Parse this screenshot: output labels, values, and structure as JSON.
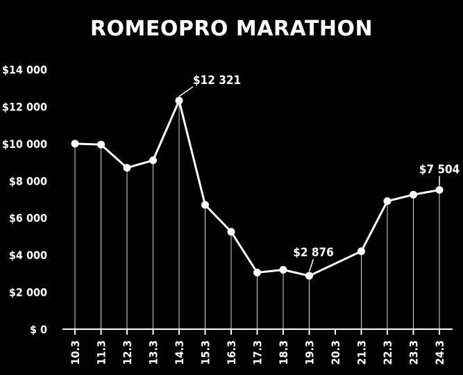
{
  "chart_data": {
    "type": "line",
    "title": "ROMEOPRO MARATHON",
    "xlabel": "",
    "ylabel": "",
    "categories": [
      "10.3",
      "11.3",
      "12.3",
      "13.3",
      "14.3",
      "15.3",
      "16.3",
      "17.3",
      "18.3",
      "19.3",
      "20.3",
      "21.3",
      "22.3",
      "23.3",
      "24.3"
    ],
    "series": [
      {
        "values": [
          10000,
          9950,
          8700,
          9100,
          12321,
          6700,
          5250,
          3050,
          3200,
          2876,
          null,
          4200,
          6900,
          7250,
          7504
        ]
      }
    ],
    "yticks": [
      "$ 0",
      "$2 000",
      "$4 000",
      "$6 000",
      "$8 000",
      "$10 000",
      "$12 000",
      "$14 000"
    ],
    "ylim": [
      0,
      14000
    ],
    "grid": false,
    "annotations": [
      {
        "category": "14.3",
        "text": "$12 321"
      },
      {
        "category": "19.3",
        "text": "$2 876"
      },
      {
        "category": "24.3",
        "text": "$7 504"
      }
    ],
    "colors": {
      "background": "#000000",
      "line": "#ffffff"
    }
  }
}
